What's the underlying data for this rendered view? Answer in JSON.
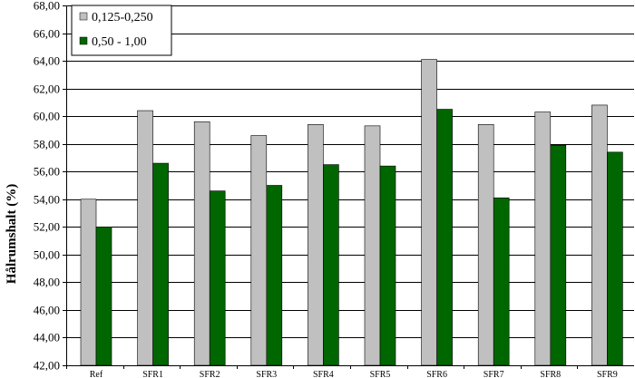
{
  "chart_data": {
    "type": "bar",
    "title": "",
    "xlabel": "",
    "ylabel": "Hålrumshalt (%)",
    "ylim": [
      42,
      68
    ],
    "yticks": [
      "42,00",
      "44,00",
      "46,00",
      "48,00",
      "50,00",
      "52,00",
      "54,00",
      "56,00",
      "58,00",
      "60,00",
      "62,00",
      "64,00",
      "66,00",
      "68,00"
    ],
    "ytick_values": [
      42,
      44,
      46,
      48,
      50,
      52,
      54,
      56,
      58,
      60,
      62,
      64,
      66,
      68
    ],
    "grid": true,
    "legend_position": "top-left",
    "categories": [
      "Ref",
      "SFR1",
      "SFR2",
      "SFR3",
      "SFR4",
      "SFR5",
      "SFR6",
      "SFR7",
      "SFR8",
      "SFR9"
    ],
    "series": [
      {
        "name": "0,125-0,250",
        "color": "#c0c0c0",
        "values": [
          54.0,
          60.4,
          59.6,
          58.6,
          59.4,
          59.3,
          64.1,
          59.4,
          60.3,
          60.8
        ]
      },
      {
        "name": "0,50 - 1,00",
        "color": "#006600",
        "values": [
          52.0,
          56.6,
          54.6,
          55.0,
          56.5,
          56.4,
          60.5,
          54.1,
          57.9,
          57.4
        ]
      }
    ]
  }
}
